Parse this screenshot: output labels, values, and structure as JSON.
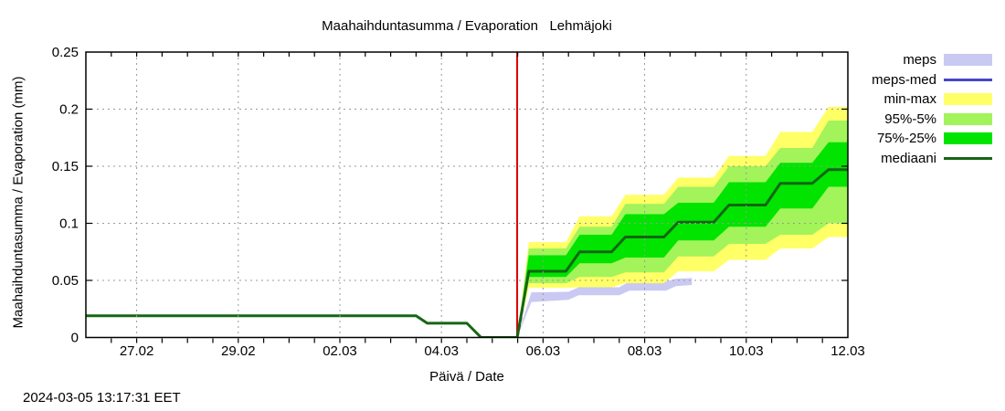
{
  "page": {
    "timestamp": "2024-03-05 13:17:31 EET"
  },
  "chart_data": {
    "type": "area",
    "title": "Maahaihduntasumma / Evaporation   Lehmäjoki",
    "xlabel": "Päivä / Date",
    "ylabel": "Maahaihduntasumma / Evaporation (mm)",
    "grid": true,
    "x_axis": {
      "unit": "days, 0 = 26.02 00:00",
      "range": [
        0,
        15
      ],
      "minor_tick_step": 0.5,
      "ticks": [
        {
          "t": 1,
          "label": "27.02"
        },
        {
          "t": 3,
          "label": "29.02"
        },
        {
          "t": 5,
          "label": "02.03"
        },
        {
          "t": 7,
          "label": "04.03"
        },
        {
          "t": 9,
          "label": "06.03"
        },
        {
          "t": 11,
          "label": "08.03"
        },
        {
          "t": 13,
          "label": "10.03"
        },
        {
          "t": 15,
          "label": "12.03"
        }
      ]
    },
    "y_axis": {
      "range": [
        0,
        0.25
      ],
      "ticks": [
        {
          "v": 0,
          "label": "0"
        },
        {
          "v": 0.05,
          "label": "0.05"
        },
        {
          "v": 0.1,
          "label": "0.1"
        },
        {
          "v": 0.15,
          "label": "0.15"
        },
        {
          "v": 0.2,
          "label": "0.2"
        },
        {
          "v": 0.25,
          "label": "0.25"
        }
      ]
    },
    "now_line": {
      "t": 8.49,
      "note": "vertical red line at forecast start 05.03 ~13:00"
    },
    "series": {
      "history_median": {
        "t": [
          0,
          6.5,
          6.72,
          7.5,
          7.78,
          8.49
        ],
        "v": [
          0.019,
          0.019,
          0.0125,
          0.0125,
          0,
          0
        ]
      },
      "forecast": {
        "t": [
          8.49,
          8.72,
          9.45,
          9.72,
          10.35,
          10.62,
          11.38,
          11.66,
          12.36,
          12.66,
          13.38,
          13.67,
          14.3,
          14.62,
          15.0
        ],
        "min": [
          0,
          0.0435,
          0.0435,
          0.044,
          0.044,
          0.0475,
          0.0475,
          0.058,
          0.058,
          0.068,
          0.068,
          0.078,
          0.078,
          0.088,
          0.088
        ],
        "p5": [
          0,
          0.0475,
          0.0475,
          0.053,
          0.053,
          0.057,
          0.057,
          0.071,
          0.071,
          0.082,
          0.082,
          0.09,
          0.09,
          0.1,
          0.1
        ],
        "p25": [
          0,
          0.053,
          0.053,
          0.065,
          0.065,
          0.07,
          0.07,
          0.085,
          0.085,
          0.097,
          0.097,
          0.113,
          0.113,
          0.132,
          0.132
        ],
        "median": [
          0,
          0.058,
          0.058,
          0.075,
          0.075,
          0.088,
          0.088,
          0.101,
          0.101,
          0.116,
          0.116,
          0.135,
          0.135,
          0.147,
          0.147
        ],
        "p75": [
          0,
          0.072,
          0.072,
          0.09,
          0.09,
          0.108,
          0.108,
          0.118,
          0.118,
          0.136,
          0.136,
          0.153,
          0.153,
          0.171,
          0.171
        ],
        "p95": [
          0,
          0.078,
          0.078,
          0.097,
          0.097,
          0.117,
          0.117,
          0.132,
          0.132,
          0.15,
          0.15,
          0.166,
          0.166,
          0.19,
          0.19
        ],
        "max": [
          0,
          0.0835,
          0.0835,
          0.106,
          0.106,
          0.125,
          0.125,
          0.14,
          0.14,
          0.159,
          0.159,
          0.18,
          0.18,
          0.202,
          0.202
        ]
      },
      "meps_band": {
        "t": [
          8.49,
          8.77,
          9.5,
          9.7,
          10.5,
          10.7,
          11.42,
          11.62,
          11.93
        ],
        "hi": [
          0,
          0.0395,
          0.04,
          0.044,
          0.044,
          0.049,
          0.049,
          0.0515,
          0.052
        ],
        "lo": [
          0,
          0.031,
          0.033,
          0.037,
          0.037,
          0.041,
          0.041,
          0.045,
          0.046
        ]
      },
      "meps_med": {
        "t": [
          8.49,
          8.6,
          8.7,
          9.2
        ],
        "v": [
          0,
          0.026,
          0.053,
          0.056
        ]
      }
    },
    "colors": {
      "meps": "#c9c9f2",
      "meps_med": "#4646c8",
      "min_max": "#ffff66",
      "p95_5": "#a2f45a",
      "p75_25": "#00e400",
      "mediaani": "#156615",
      "now_line": "#dd0000",
      "grid": "#9a9a9a",
      "axis": "#000000"
    },
    "legend": {
      "position": "outside-right-top",
      "items": [
        {
          "label": "meps",
          "type": "band",
          "color": "#c9c9f2"
        },
        {
          "label": "meps-med",
          "type": "line",
          "color": "#4646c8"
        },
        {
          "label": "min-max",
          "type": "band",
          "color": "#ffff66"
        },
        {
          "label": "95%-5%",
          "type": "band",
          "color": "#a2f45a"
        },
        {
          "label": "75%-25%",
          "type": "band",
          "color": "#00e400"
        },
        {
          "label": "mediaani",
          "type": "line",
          "color": "#156615"
        }
      ]
    }
  }
}
